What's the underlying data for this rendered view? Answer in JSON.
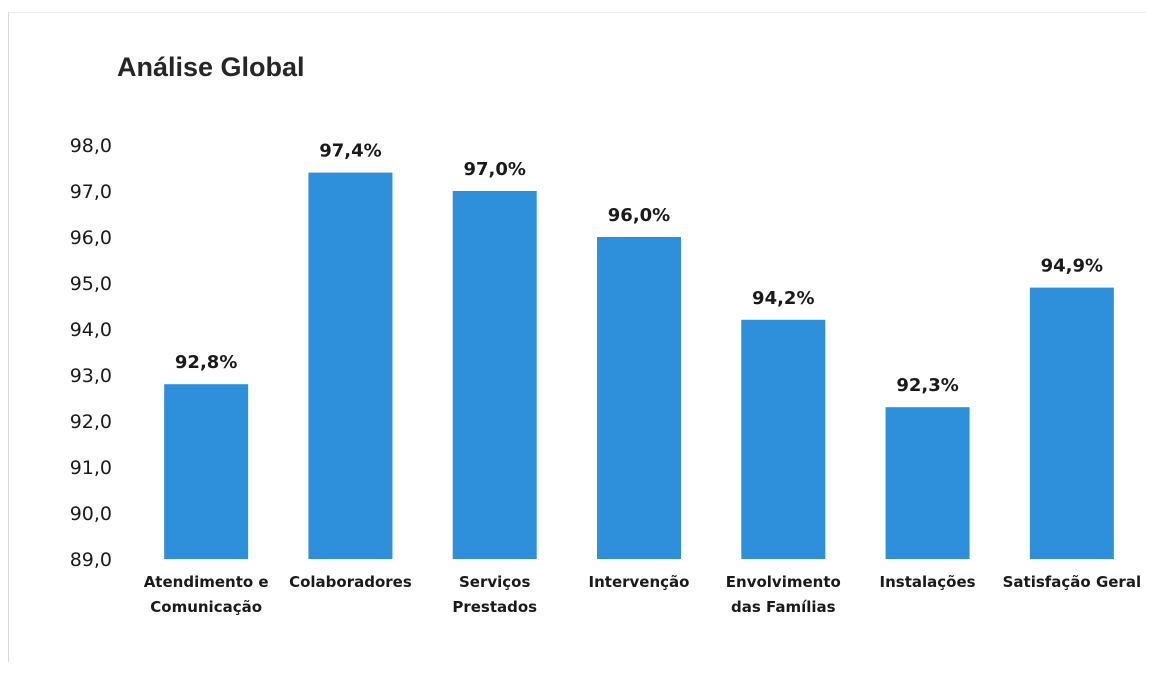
{
  "chart_data": {
    "type": "bar",
    "title": "Análise Global",
    "categories": [
      [
        "Atendimento e",
        "Comunicação"
      ],
      [
        "Colaboradores"
      ],
      [
        "Serviços",
        "Prestados"
      ],
      [
        "Intervenção"
      ],
      [
        "Envolvimento",
        "das Famílias"
      ],
      [
        "Instalações"
      ],
      [
        "Satisfação Geral"
      ]
    ],
    "values": [
      92.8,
      97.4,
      97.0,
      96.0,
      94.2,
      92.3,
      94.9
    ],
    "data_labels": [
      "92,8%",
      "97,4%",
      "97,0%",
      "96,0%",
      "94,2%",
      "92,3%",
      "94,9%"
    ],
    "y_ticks": [
      "89,0",
      "90,0",
      "91,0",
      "92,0",
      "93,0",
      "94,0",
      "95,0",
      "96,0",
      "97,0",
      "98,0"
    ],
    "ylim": [
      89,
      98
    ],
    "xlabel": "",
    "ylabel": "",
    "grid": false,
    "bar_color": "#2E8FDB"
  }
}
